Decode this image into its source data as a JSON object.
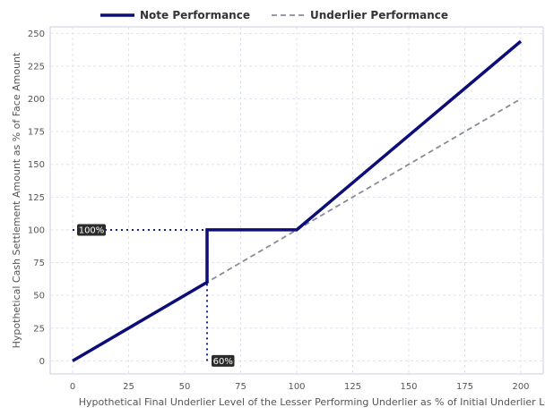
{
  "chart_data": {
    "type": "line",
    "xlabel": "Hypothetical Final Underlier Level of the Lesser Performing Underlier as % of Initial Underlier Level",
    "ylabel": "Hypothetical Cash Settlement Amount as % of Face Amount",
    "xlim": [
      -10,
      210
    ],
    "ylim": [
      -10,
      255
    ],
    "xticks": [
      0,
      25,
      50,
      75,
      100,
      125,
      150,
      175,
      200
    ],
    "yticks": [
      0,
      25,
      50,
      75,
      100,
      125,
      150,
      175,
      200,
      225,
      250
    ],
    "grid": true,
    "legend_position": "top-center",
    "series": [
      {
        "name": "Note Performance",
        "style": "solid",
        "color": "#0d0d7a",
        "x": [
          0,
          60,
          60,
          100,
          200
        ],
        "y": [
          0,
          60,
          100,
          100,
          244
        ]
      },
      {
        "name": "Underlier Performance",
        "style": "dashed",
        "color": "#8a8a9a",
        "x": [
          0,
          200
        ],
        "y": [
          0,
          200
        ]
      }
    ],
    "reference_lines": [
      {
        "from": [
          0,
          100
        ],
        "to": [
          60,
          100
        ],
        "style": "dotted",
        "color": "#1a237e"
      },
      {
        "from": [
          60,
          0
        ],
        "to": [
          60,
          60
        ],
        "style": "dotted",
        "color": "#1a237e"
      }
    ],
    "annotations": [
      {
        "text": "100%",
        "x": 0,
        "y": 100
      },
      {
        "text": "60%",
        "x": 60,
        "y": 0
      }
    ]
  }
}
